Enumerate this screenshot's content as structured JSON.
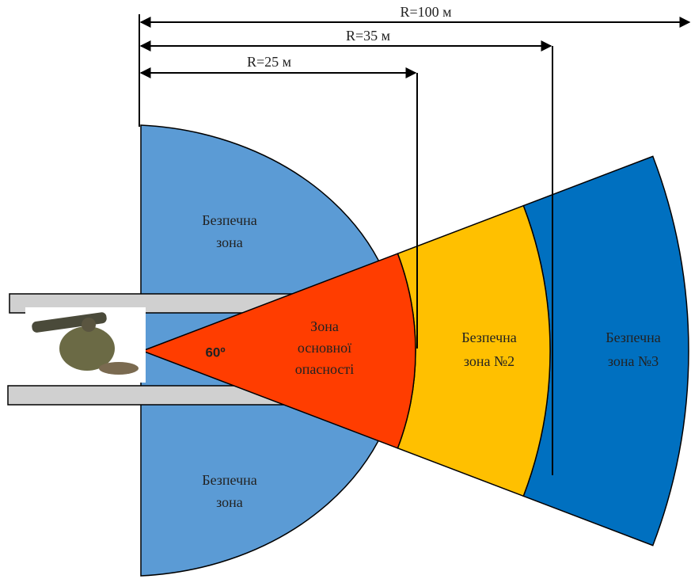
{
  "dimensions": [
    {
      "label": "R=100 м"
    },
    {
      "label": "R=35 м"
    },
    {
      "label": "R=25 м"
    }
  ],
  "zones": [
    {
      "lines": [
        "Безпечна",
        "зона"
      ]
    },
    {
      "lines": [
        "Зона",
        "основної",
        "опасності"
      ]
    },
    {
      "lines": [
        "Безпечна",
        "зона №2"
      ]
    },
    {
      "lines": [
        "Безпечна",
        "зона №3"
      ]
    },
    {
      "lines": [
        "Безпечна",
        "зона"
      ]
    }
  ],
  "angle": "60º"
}
